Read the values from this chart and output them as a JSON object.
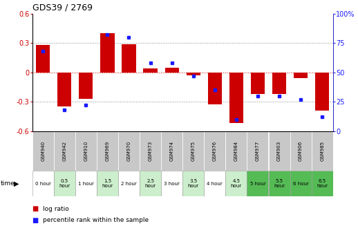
{
  "title": "GDS39 / 2769",
  "samples": [
    "GSM940",
    "GSM942",
    "GSM910",
    "GSM969",
    "GSM970",
    "GSM973",
    "GSM974",
    "GSM975",
    "GSM976",
    "GSM984",
    "GSM977",
    "GSM903",
    "GSM906",
    "GSM985"
  ],
  "time_labels": [
    "0 hour",
    "0.5\nhour",
    "1 hour",
    "1.5\nhour",
    "2 hour",
    "2.5\nhour",
    "3 hour",
    "3.5\nhour",
    "4 hour",
    "4.5\nhour",
    "5 hour",
    "5.5\nhour",
    "6 hour",
    "6.5\nhour"
  ],
  "log_ratio": [
    0.28,
    -0.35,
    -0.27,
    0.4,
    0.29,
    0.04,
    0.05,
    -0.03,
    -0.33,
    -0.52,
    -0.22,
    -0.22,
    -0.06,
    -0.39
  ],
  "percentile": [
    68,
    18,
    22,
    82,
    80,
    58,
    58,
    47,
    35,
    10,
    30,
    30,
    27,
    12
  ],
  "ylim": [
    -0.6,
    0.6
  ],
  "y2lim": [
    0,
    100
  ],
  "yticks": [
    -0.6,
    -0.3,
    0.0,
    0.3,
    0.6
  ],
  "y2ticks": [
    0,
    25,
    50,
    75,
    100
  ],
  "bar_color": "#cc0000",
  "dot_color": "#1a1aff",
  "bg_color_gray": "#c8c8c8",
  "bg_color_lightgreen": "#ccf0cc",
  "bg_color_green": "#66cc66",
  "dotted_color": "#888888",
  "zero_line_color": "#cc0000",
  "time_colors": [
    "white",
    "#cceecc",
    "white",
    "#cceecc",
    "white",
    "#cceecc",
    "white",
    "#cceecc",
    "white",
    "#cceecc",
    "#55bb55",
    "#55bb55",
    "#55bb55",
    "#55bb55"
  ]
}
